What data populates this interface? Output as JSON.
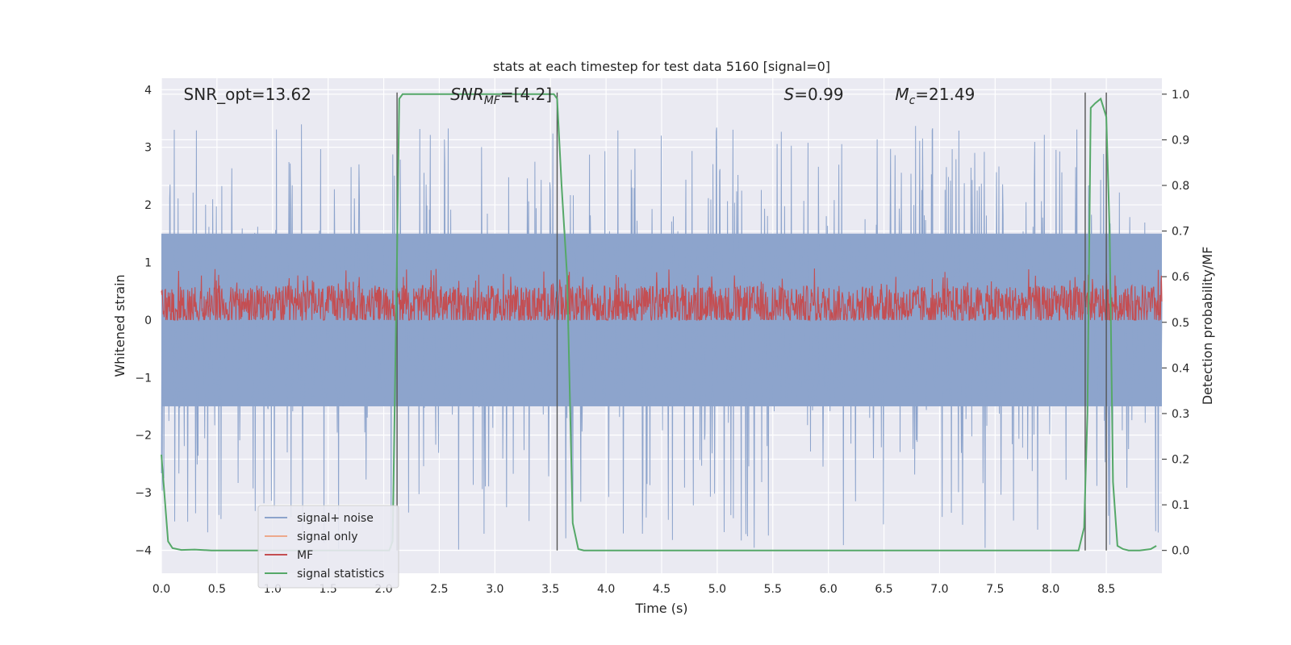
{
  "chart_data": {
    "type": "line",
    "title": "stats at each timestep for test data 5160 [signal=0]",
    "xlabel": "Time (s)",
    "ylabel_left": "Whitened strain",
    "ylabel_right": "Detection probability/MF",
    "xlim": [
      0,
      9.0
    ],
    "ylim_left": [
      -4.4,
      4.2
    ],
    "ylim_right": [
      -0.05,
      1.035
    ],
    "x_ticks": [
      "0.0",
      "0.5",
      "1.0",
      "1.5",
      "2.0",
      "2.5",
      "3.0",
      "3.5",
      "4.0",
      "4.5",
      "5.0",
      "5.5",
      "6.0",
      "6.5",
      "7.0",
      "7.5",
      "8.0",
      "8.5"
    ],
    "y_ticks_left": [
      "−4",
      "−3",
      "−2",
      "−1",
      "0",
      "1",
      "2",
      "3",
      "4"
    ],
    "y_ticks_right": [
      "0.0",
      "0.1",
      "0.2",
      "0.3",
      "0.4",
      "0.5",
      "0.6",
      "0.7",
      "0.8",
      "0.9",
      "1.0"
    ],
    "grid": true,
    "legend_position": "lower-left",
    "annotations": [
      {
        "id": "snr-opt",
        "text": "SNR_opt=13.62",
        "x": 0.2
      },
      {
        "id": "snr-mf",
        "text": "SNR",
        "sub": "MF",
        "after": "=[4.2]",
        "italic": true,
        "x": 2.6
      },
      {
        "id": "s-value",
        "text": "S",
        "after": "=0.99",
        "italic": true,
        "x": 5.6
      },
      {
        "id": "mc-value",
        "text": "M",
        "sub": "c",
        "after": "=21.49",
        "italic": true,
        "x": 6.6
      }
    ],
    "vlines": [
      2.12,
      3.56,
      8.31,
      8.5
    ],
    "series": [
      {
        "name": "signal+ noise",
        "color": "#8da4cc",
        "axis": "left",
        "kind": "noise",
        "core_amplitude": 1.5,
        "spike_max": 3.4,
        "spike_min": -4.0
      },
      {
        "name": "signal only",
        "color": "#eda98b",
        "axis": "left",
        "values": []
      },
      {
        "name": "MF",
        "color": "#c44e52",
        "axis": "left",
        "kind": "band",
        "low": 0.0,
        "high": 1.0,
        "typical": 0.25
      },
      {
        "name": "signal statistics",
        "color": "#55a868",
        "axis": "right",
        "x": [
          0.0,
          0.06,
          0.1,
          0.18,
          0.3,
          0.45,
          0.8,
          1.5,
          2.05,
          2.08,
          2.12,
          2.14,
          2.17,
          2.2,
          2.5,
          3.0,
          3.5,
          3.53,
          3.56,
          3.6,
          3.65,
          3.7,
          3.75,
          3.8,
          4.5,
          6.0,
          8.0,
          8.25,
          8.3,
          8.33,
          8.36,
          8.4,
          8.45,
          8.5,
          8.53,
          8.56,
          8.6,
          8.65,
          8.7,
          8.8,
          8.9,
          8.95
        ],
        "values": [
          0.21,
          0.02,
          0.005,
          0.001,
          0.002,
          0.0,
          0.0,
          0.0,
          0.0,
          0.02,
          0.65,
          0.99,
          1.0,
          1.0,
          1.0,
          1.0,
          1.0,
          1.0,
          0.99,
          0.8,
          0.6,
          0.06,
          0.003,
          0.0,
          0.0,
          0.0,
          0.0,
          0.0,
          0.05,
          0.3,
          0.97,
          0.98,
          0.99,
          0.95,
          0.7,
          0.15,
          0.01,
          0.003,
          0.0,
          0.0,
          0.003,
          0.01
        ]
      }
    ]
  }
}
